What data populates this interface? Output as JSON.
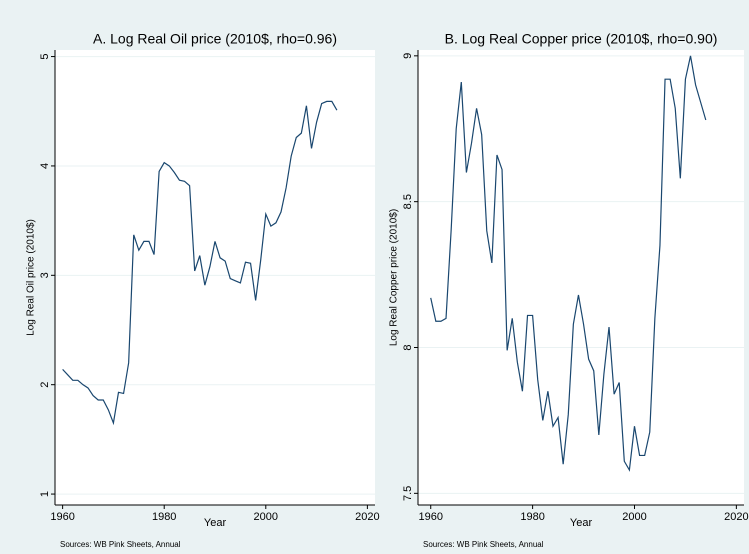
{
  "chart_data": [
    {
      "type": "line",
      "title": "A. Log Real Oil price (2010$, rho=0.96)",
      "xlabel": "Year",
      "ylabel": "Log Real Oil price (2010$)",
      "note": "Sources: WB Pink Sheets, Annual",
      "x": [
        1960,
        1961,
        1962,
        1963,
        1964,
        1965,
        1966,
        1967,
        1968,
        1969,
        1970,
        1971,
        1972,
        1973,
        1974,
        1975,
        1976,
        1977,
        1978,
        1979,
        1980,
        1981,
        1982,
        1983,
        1984,
        1985,
        1986,
        1987,
        1988,
        1989,
        1990,
        1991,
        1992,
        1993,
        1994,
        1995,
        1996,
        1997,
        1998,
        1999,
        2000,
        2001,
        2002,
        2003,
        2004,
        2005,
        2006,
        2007,
        2008,
        2009,
        2010,
        2011,
        2012,
        2013,
        2014
      ],
      "values": [
        2.14,
        2.09,
        2.04,
        2.04,
        2.0,
        1.97,
        1.9,
        1.86,
        1.86,
        1.77,
        1.65,
        1.93,
        1.92,
        2.2,
        3.37,
        3.23,
        3.31,
        3.31,
        3.19,
        3.95,
        4.03,
        4.0,
        3.94,
        3.87,
        3.86,
        3.82,
        3.04,
        3.18,
        2.91,
        3.08,
        3.31,
        3.16,
        3.13,
        2.97,
        2.95,
        2.93,
        3.12,
        3.11,
        2.77,
        3.14,
        3.56,
        3.45,
        3.48,
        3.58,
        3.8,
        4.09,
        4.26,
        4.3,
        4.55,
        4.16,
        4.4,
        4.57,
        4.59,
        4.59,
        4.51
      ],
      "color": "#1a476f",
      "xlim": [
        1958.5,
        2021.5
      ],
      "xticks": [
        1960,
        1980,
        2000,
        2020
      ],
      "ylim": [
        0.9,
        5.06
      ],
      "yticks": [
        1,
        2,
        3,
        4,
        5
      ],
      "grid": true
    },
    {
      "type": "line",
      "title": "B. Log Real Copper price (2010$, rho=0.90)",
      "xlabel": "Year",
      "ylabel": "Log Real Copper price (2010$)",
      "note": "Sources: WB Pink Sheets, Annual",
      "x": [
        1960,
        1961,
        1962,
        1963,
        1964,
        1965,
        1966,
        1967,
        1968,
        1969,
        1970,
        1971,
        1972,
        1973,
        1974,
        1975,
        1976,
        1977,
        1978,
        1979,
        1980,
        1981,
        1982,
        1983,
        1984,
        1985,
        1986,
        1987,
        1988,
        1989,
        1990,
        1991,
        1992,
        1993,
        1994,
        1995,
        1996,
        1997,
        1998,
        1999,
        2000,
        2001,
        2002,
        2003,
        2004,
        2005,
        2006,
        2007,
        2008,
        2009,
        2010,
        2011,
        2012,
        2013,
        2014
      ],
      "values": [
        8.17,
        8.09,
        8.09,
        8.1,
        8.4,
        8.75,
        8.91,
        8.6,
        8.7,
        8.82,
        8.73,
        8.4,
        8.29,
        8.66,
        8.61,
        7.99,
        8.1,
        7.95,
        7.85,
        8.11,
        8.11,
        7.89,
        7.75,
        7.85,
        7.73,
        7.76,
        7.6,
        7.77,
        8.08,
        8.18,
        8.08,
        7.96,
        7.92,
        7.7,
        7.91,
        8.07,
        7.84,
        7.88,
        7.61,
        7.58,
        7.73,
        7.63,
        7.63,
        7.71,
        8.1,
        8.35,
        8.92,
        8.92,
        8.82,
        8.58,
        8.92,
        9.0,
        8.9,
        8.84,
        8.78
      ],
      "color": "#1a476f",
      "xlim": [
        1957.5,
        2021.5
      ],
      "xticks": [
        1960,
        1980,
        2000,
        2020
      ],
      "ylim": [
        7.46,
        9.02
      ],
      "yticks": [
        7.5,
        8,
        8.5,
        9
      ],
      "grid": true
    }
  ]
}
